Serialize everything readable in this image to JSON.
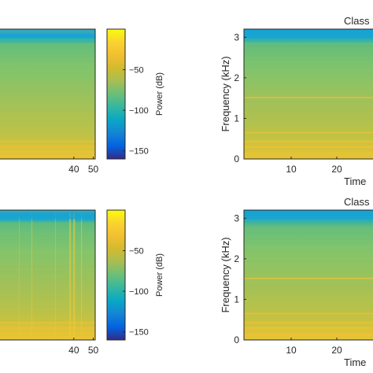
{
  "chart_data": [
    {
      "type": "heatmap",
      "panel": "top-left",
      "x_ticks": [
        40,
        50
      ],
      "xlim": [
        0,
        51
      ],
      "colorbar": {
        "label": "Power (dB)",
        "ticks": [
          -50,
          -100,
          -150
        ],
        "clim": [
          -160,
          0
        ],
        "colormap": "parula"
      }
    },
    {
      "type": "heatmap",
      "panel": "top-right",
      "title": "Class",
      "xlabel": "Time",
      "ylabel": "Frequency (kHz)",
      "x_ticks": [
        10,
        20
      ],
      "y_ticks": [
        0,
        1,
        2,
        3
      ],
      "ylim": [
        0,
        3.2
      ]
    },
    {
      "type": "heatmap",
      "panel": "bottom-left",
      "x_ticks": [
        40,
        50
      ],
      "xlim": [
        0,
        51
      ],
      "colorbar": {
        "label": "Power (dB)",
        "ticks": [
          -50,
          -100,
          -150
        ],
        "clim": [
          -160,
          0
        ],
        "colormap": "parula"
      }
    },
    {
      "type": "heatmap",
      "panel": "bottom-right",
      "title": "Class",
      "xlabel": "Time",
      "ylabel": "Frequency (kHz)",
      "x_ticks": [
        10,
        20
      ],
      "y_ticks": [
        0,
        1,
        2,
        3
      ],
      "ylim": [
        0,
        3.2
      ]
    }
  ]
}
